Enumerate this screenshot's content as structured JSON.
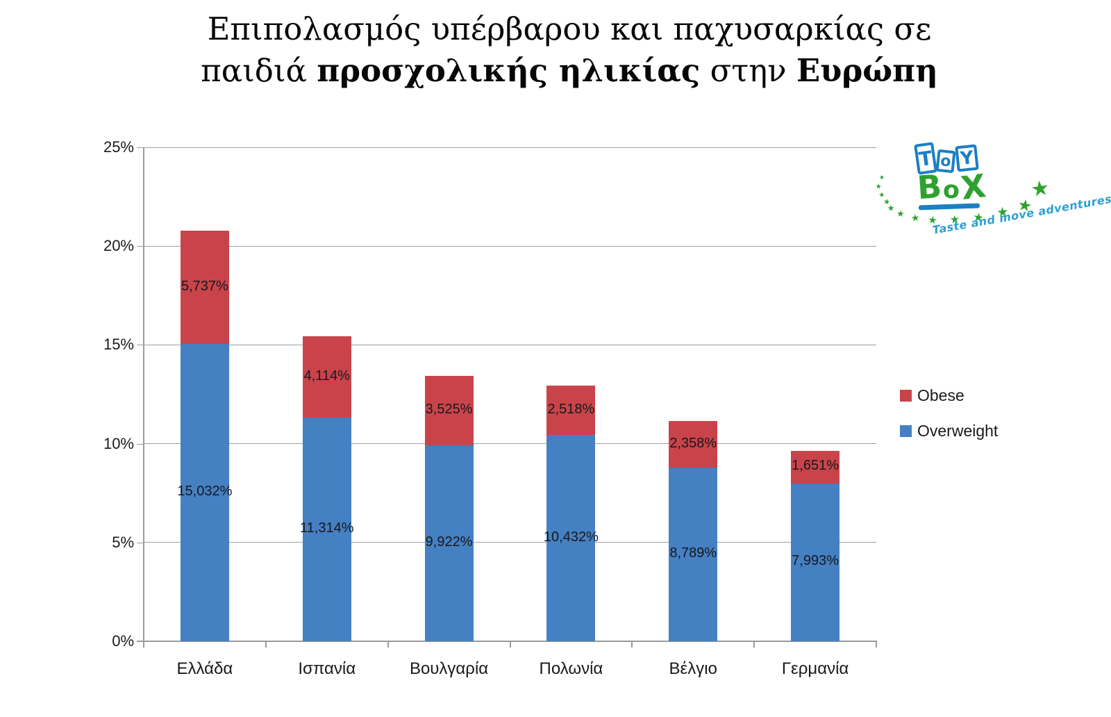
{
  "title": {
    "line1": "Επιπολασμός υπέρβαρου και παχυσαρκίας σε",
    "line2_normal1": "παιδιά ",
    "line2_bold1": "προσχολικής ηλικίας",
    "line2_normal2": " στην ",
    "line2_bold2": "Ευρώπη"
  },
  "chart_data": {
    "type": "bar",
    "stacked": true,
    "title": "Επιπολασμός υπέρβαρου και παχυσαρκίας σε παιδιά προσχολικής ηλικίας στην Ευρώπη",
    "categories": [
      "Ελλάδα",
      "Ισπανία",
      "Βουλγαρία",
      "Πολωνία",
      "Βέλγιο",
      "Γερμανία"
    ],
    "series": [
      {
        "name": "Overweight",
        "color": "#4580c2",
        "values": [
          15.032,
          11.314,
          9.922,
          10.432,
          8.789,
          7.993
        ],
        "labels": [
          "15,032%",
          "11,314%",
          "9,922%",
          "10,432%",
          "8,789%",
          "7,993%"
        ]
      },
      {
        "name": "Obese",
        "color": "#c9444a",
        "values": [
          5.737,
          4.114,
          3.525,
          2.518,
          2.358,
          1.651
        ],
        "labels": [
          "5,737%",
          "4,114%",
          "3,525%",
          "2,518%",
          "2,358%",
          "1,651%"
        ]
      }
    ],
    "ylim": [
      0,
      25
    ],
    "yticks": [
      {
        "value": 0,
        "label": "0%"
      },
      {
        "value": 5,
        "label": "5%"
      },
      {
        "value": 10,
        "label": "10%"
      },
      {
        "value": 15,
        "label": "15%"
      },
      {
        "value": 20,
        "label": "20%"
      },
      {
        "value": 25,
        "label": "25%"
      }
    ],
    "grid": true,
    "legend": {
      "position": "right",
      "items": [
        {
          "label": "Obese",
          "color": "#c9444a"
        },
        {
          "label": "Overweight",
          "color": "#4580c2"
        }
      ]
    }
  },
  "logo": {
    "word1_letters": [
      "T",
      "o",
      "Y"
    ],
    "word2_letters": [
      "B",
      "o",
      "X"
    ],
    "tagline": "Taste and move adventures",
    "colors": {
      "blue": "#1b7fc4",
      "green": "#2fa12f",
      "tagline_blue": "#2e9fd4"
    }
  }
}
